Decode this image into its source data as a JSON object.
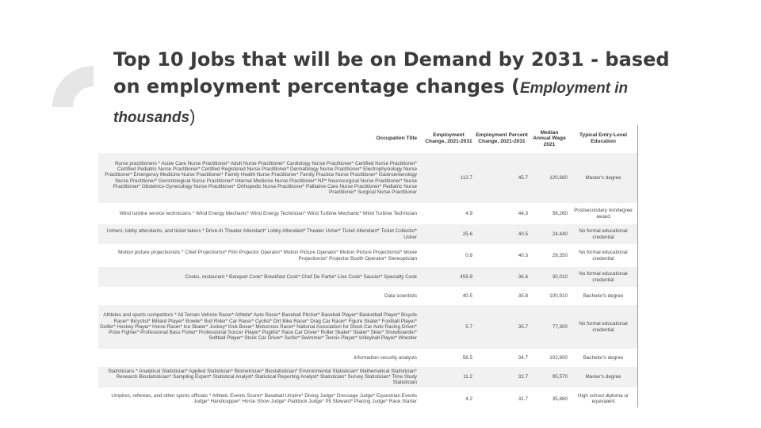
{
  "slide": {
    "title_main": "Top 10 Jobs that will be on Demand by 2031 - based on employment percentage changes (",
    "title_italic": "Employment in thousands",
    "title_close": ")"
  },
  "table": {
    "headers": {
      "occupation": "Occupation Title",
      "change": "Employment Change, 2021-2031",
      "percent": "Employment Percent Change, 2021-2031",
      "wage": "Median Annual Wage 2021",
      "education": "Typical Entry-Level Education"
    },
    "rows": [
      {
        "title": "Nurse practitioners * Acute Care Nurse Practitioner* Adult Nurse Practitioner* Cardiology Nurse Practitioner* Certified Nurse Practitioner* Certified Pediatric Nurse Practitioner* Certified Registered Nurse Practitioner* Dermatology Nurse Practitioner* Electrophysiology Nurse Practitioner* Emergency Medicine Nurse Practitioner* Family Health Nurse Practitioner* Family Practice Nurse Practitioner* Gastroenterology Nurse Practitioner* Gerontological Nurse Practitioner* Internal Medicine Nurse Practitioner* NP* Neurosurgical Nurse Practitioner* Nurse Practitioner* Obstetrics-Gynecology Nurse Practitioner* Orthopedic Nurse Practitioner* Palliative Care Nurse Practitioner* Pediatric Nurse Practitioner* Surgical Nurse Practitioner",
        "change": "112.7",
        "percent": "45.7",
        "wage": "120,680",
        "education": "Master's degree"
      },
      {
        "title": "Wind turbine service technicians * Wind Energy Mechanic* Wind Energy Technician* Wind Turbine Mechanic* Wind Turbine Technician",
        "change": "4.9",
        "percent": "44.3",
        "wage": "56,260",
        "education": "Postsecondary nondegree award"
      },
      {
        "title": "Ushers, lobby attendants, and ticket takers * Drive-In Theater Attendant* Lobby Attendant* Theater Usher* Ticket Attendant* Ticket Collector* Usher",
        "change": "25.6",
        "percent": "40.5",
        "wage": "24,440",
        "education": "No formal educational credential"
      },
      {
        "title": "Motion picture projectionists * Chief Projectionist* Film Projector Operator* Motion Picture Operator* Motion Picture Projectionist* Movie Projectionist* Projector Booth Operator* Stereoptician",
        "change": "0.8",
        "percent": "40.3",
        "wage": "29,350",
        "education": "No formal educational credential"
      },
      {
        "title": "Cooks, restaurant * Banquet Cook* Breakfast Cook* Chef De Partie* Line Cook* Saucier* Specialty Cook",
        "change": "459.9",
        "percent": "36.6",
        "wage": "30,010",
        "education": "No formal educational credential"
      },
      {
        "title": "Data scientists",
        "change": "40.5",
        "percent": "35.8",
        "wage": "100,910",
        "education": "Bachelor's degree"
      },
      {
        "title": "Athletes and sports competitors * All Terrain Vehicle Racer* Athlete* Auto Racer* Baseball Pitcher* Baseball Player* Basketball Player* Bicycle Racer* Bicyclist* Billiard Player* Bowler* Bull Rider* Car Racer* Cyclist* Dirt Bike Racer* Drag Car Racer* Figure Skater* Football Player* Golfer* Hockey Player* Horse Racer* Ice Skater* Jockey* Kick Boxer* Motocross Racer* National Association for Stock Car Auto Racing Driver* Prize Fighter* Professional Bass Fisher* Professional Soccer Player* Pugilist* Race Car Driver* Roller Skater* Skater* Skier* Snowboarder* Softball Player* Stock Car Driver* Surfer* Swimmer* Tennis Player* Volleyball Player* Wrestler",
        "change": "5.7",
        "percent": "35.7",
        "wage": "77,300",
        "education": "No formal educational credential"
      },
      {
        "title": "Information security analysts",
        "change": "56.5",
        "percent": "34.7",
        "wage": "102,600",
        "education": "Bachelor's degree"
      },
      {
        "title": "Statisticians * Analytical Statistician* Applied Statistician* Biometrician* Biostatistician* Environmental Statistician* Mathematical Statistician* Research Biostatistician* Sampling Expert* Statistical Analyst* Statistical Reporting Analyst* Statistician* Survey Statistician* Time Study Statistician",
        "change": "11.2",
        "percent": "32.7",
        "wage": "95,570",
        "education": "Master's degree"
      },
      {
        "title": "Umpires, referees, and other sports officials * Athletic Events Scorer* Baseball Umpire* Diving Judge* Dressage Judge* Equestrian Events Judge* Handicapper* Horse Show Judge* Paddock Judge* Pit Steward* Placing Judge* Race Starter",
        "change": "4.2",
        "percent": "31.7",
        "wage": "35,860",
        "education": "High school diploma or equivalent"
      }
    ]
  }
}
